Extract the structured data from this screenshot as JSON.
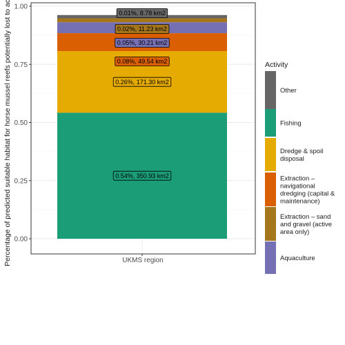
{
  "chart_data": {
    "type": "bar",
    "stacked": true,
    "categories": [
      "UKMS region"
    ],
    "xlabel": "UKMS region",
    "ylabel": "Percentage of predicted suitable habitat for horse mussel reefs potentially lost to activity",
    "ylim": [
      0,
      1.0
    ],
    "yticks": [
      "0.00",
      "0.25",
      "0.50",
      "0.75",
      "1.00"
    ],
    "grid": true,
    "legend_position": "right",
    "legend_title": "Activity",
    "series": [
      {
        "name": "Fishing",
        "value": 0.542,
        "label": "0.54%, 350.93 km2",
        "color": "#1b9e77"
      },
      {
        "name": "Dredge & spoil disposal",
        "value": 0.265,
        "label": "0.26%, 171.30 km2",
        "color": "#e6ab02"
      },
      {
        "name": "Extraction – navigational dredging (capital & maintenance)",
        "value": 0.077,
        "label": "0.08%, 49.54 km2",
        "color": "#d95f02"
      },
      {
        "name": "Aquaculture",
        "value": 0.047,
        "label": "0.05%, 30.21 km2",
        "color": "#7570b3"
      },
      {
        "name": "Extraction – sand and gravel (active area only)",
        "value": 0.017,
        "label": "0.02%, 11.23 km2",
        "color": "#a6761d"
      },
      {
        "name": "Other",
        "value": 0.014,
        "label": "0.01%, 8.78 km2",
        "color": "#666666"
      }
    ]
  },
  "legend": {
    "title": "Activity",
    "items": [
      {
        "lines": [
          "Other"
        ],
        "color": "#666666"
      },
      {
        "lines": [
          "Fishing"
        ],
        "color": "#1b9e77"
      },
      {
        "lines": [
          "Dredge & spoil",
          "disposal"
        ],
        "color": "#e6ab02"
      },
      {
        "lines": [
          "Extraction –",
          "navigational",
          "dredging (capital &",
          "maintenance)"
        ],
        "color": "#d95f02"
      },
      {
        "lines": [
          "Extraction – sand",
          "and gravel (active",
          "area only)"
        ],
        "color": "#a6761d"
      },
      {
        "lines": [
          "Aquaculture"
        ],
        "color": "#7570b3"
      }
    ]
  }
}
